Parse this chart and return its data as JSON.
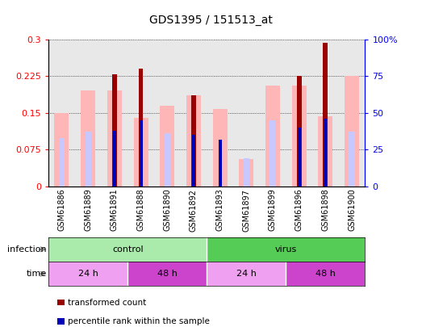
{
  "title": "GDS1395 / 151513_at",
  "samples": [
    "GSM61886",
    "GSM61889",
    "GSM61891",
    "GSM61888",
    "GSM61890",
    "GSM61892",
    "GSM61893",
    "GSM61897",
    "GSM61899",
    "GSM61896",
    "GSM61898",
    "GSM61900"
  ],
  "red_bars": [
    0,
    0,
    0.228,
    0.24,
    0,
    0.185,
    0,
    0,
    0,
    0.225,
    0.293,
    0
  ],
  "pink_bars": [
    0.15,
    0.195,
    0.195,
    0.14,
    0.165,
    0.185,
    0.157,
    0.055,
    0.205,
    0.205,
    0.143,
    0.225
  ],
  "blue_bars_pct": [
    0,
    0,
    38,
    45,
    0,
    35,
    32,
    0,
    0,
    40,
    46,
    0
  ],
  "lav_bars_pct": [
    33,
    37,
    0,
    0,
    36,
    0,
    0,
    19,
    45,
    0,
    0,
    37
  ],
  "infection_groups": [
    {
      "label": "control",
      "start": 0,
      "end": 6,
      "color": "#aaeaaa"
    },
    {
      "label": "virus",
      "start": 6,
      "end": 12,
      "color": "#55cc55"
    }
  ],
  "time_groups": [
    {
      "label": "24 h",
      "start": 0,
      "end": 3,
      "color": "#f0a0f0"
    },
    {
      "label": "48 h",
      "start": 3,
      "end": 6,
      "color": "#cc44cc"
    },
    {
      "label": "24 h",
      "start": 6,
      "end": 9,
      "color": "#f0a0f0"
    },
    {
      "label": "48 h",
      "start": 9,
      "end": 12,
      "color": "#cc44cc"
    }
  ],
  "ylim_left": [
    0,
    0.3
  ],
  "ylim_right": [
    0,
    100
  ],
  "yticks_left": [
    0,
    0.075,
    0.15,
    0.225,
    0.3
  ],
  "yticks_right": [
    0,
    25,
    50,
    75,
    100
  ],
  "ylabel_right_labels": [
    "0",
    "25",
    "50",
    "75",
    "100%"
  ],
  "color_red": "#990000",
  "color_pink": "#ffb6b6",
  "color_blue": "#0000bb",
  "color_lavender": "#c8c8ff",
  "title_fontsize": 10,
  "tick_fontsize": 7
}
